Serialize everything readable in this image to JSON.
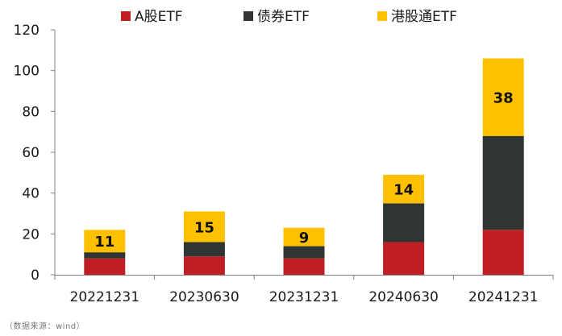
{
  "chart_data": {
    "type": "bar",
    "stacked": true,
    "categories": [
      "20221231",
      "20230630",
      "20231231",
      "20240630",
      "20241231"
    ],
    "series": [
      {
        "name": "A股ETF",
        "color": "#BF1F24",
        "values": [
          8,
          9,
          8,
          16,
          22
        ]
      },
      {
        "name": "债券ETF",
        "color": "#2E3532",
        "values": [
          3,
          7,
          6,
          19,
          46
        ]
      },
      {
        "name": "港股通ETF",
        "color": "#FFC000",
        "values": [
          11,
          15,
          9,
          14,
          38
        ]
      }
    ],
    "data_labels": {
      "series": "港股通ETF",
      "values": [
        "11",
        "15",
        "9",
        "14",
        "38"
      ]
    },
    "yticks": [
      "0",
      "20",
      "40",
      "60",
      "80",
      "100",
      "120"
    ],
    "ylim": [
      0,
      120
    ],
    "legend_position": "top",
    "grid": false
  },
  "source_note": "（数据来源：wind）"
}
